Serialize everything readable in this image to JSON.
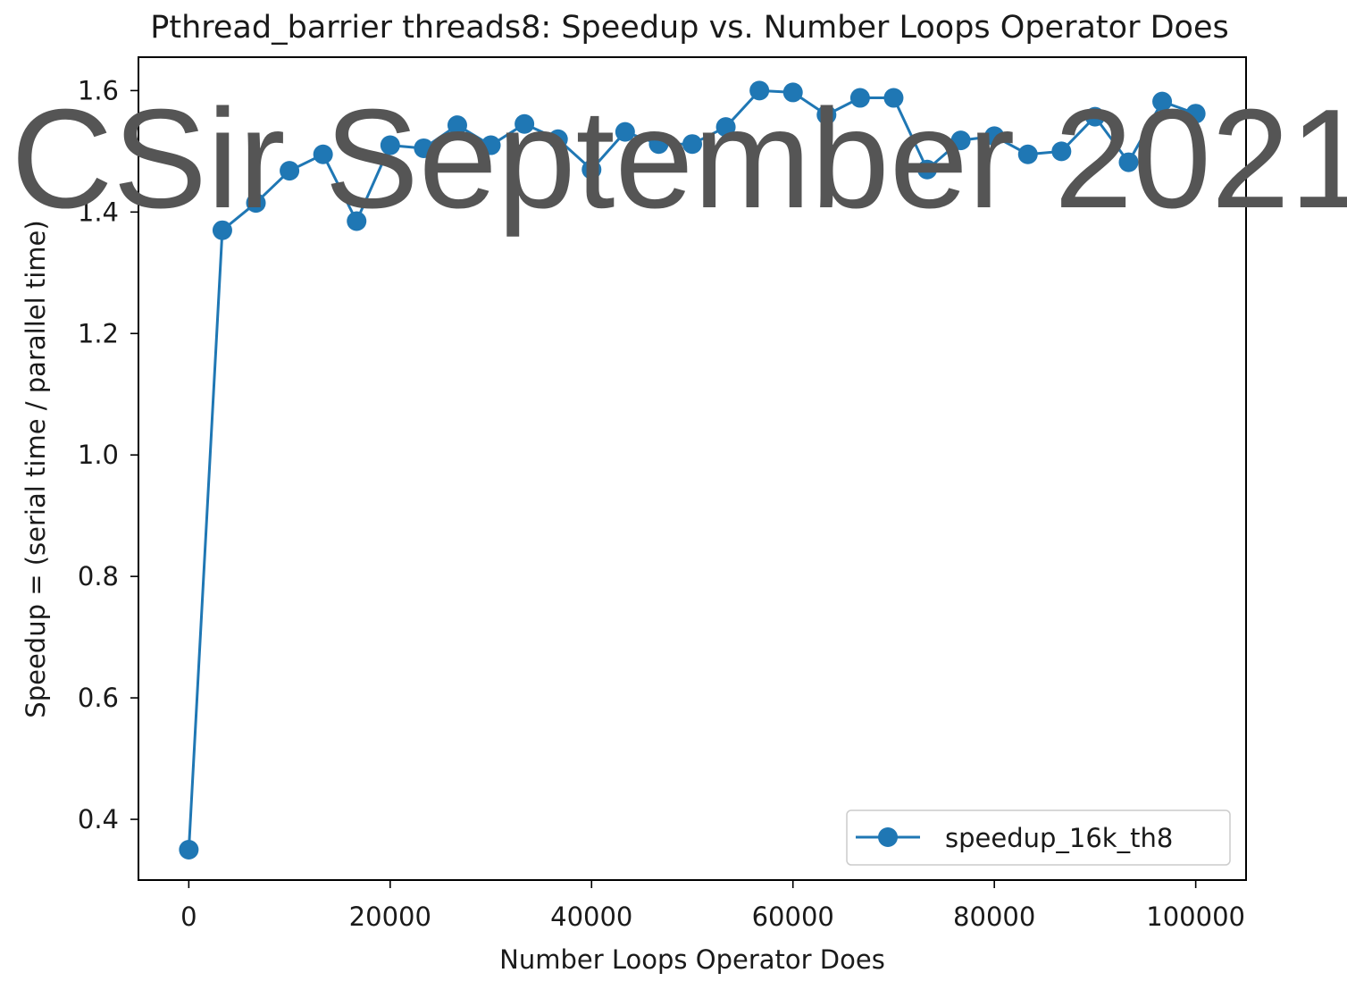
{
  "chart_data": {
    "type": "line",
    "title": "Pthread_barrier threads8: Speedup vs. Number Loops Operator Does",
    "xlabel": "Number Loops Operator Does",
    "ylabel": "Speedup = (serial time / parallel time)",
    "xlim": [
      -5000,
      105000
    ],
    "ylim": [
      0.3,
      1.655
    ],
    "xticks": [
      0,
      20000,
      40000,
      60000,
      80000,
      100000
    ],
    "xtick_labels": [
      "0",
      "20000",
      "40000",
      "60000",
      "80000",
      "100000"
    ],
    "yticks": [
      0.4,
      0.6,
      0.8,
      1.0,
      1.2,
      1.4,
      1.6
    ],
    "ytick_labels": [
      "0.4",
      "0.6",
      "0.8",
      "1.0",
      "1.2",
      "1.4",
      "1.6"
    ],
    "grid": false,
    "legend_position": "lower-right",
    "series": [
      {
        "name": "speedup_16k_th8",
        "color": "#1f77b4",
        "marker": "circle",
        "x": [
          0,
          3333,
          6667,
          10000,
          13333,
          16667,
          20000,
          23333,
          26667,
          30000,
          33333,
          36667,
          40000,
          43333,
          46667,
          50000,
          53333,
          56667,
          60000,
          63333,
          66667,
          70000,
          73333,
          76667,
          80000,
          83333,
          86667,
          90000,
          93333,
          96667,
          100000
        ],
        "y": [
          0.35,
          1.37,
          1.415,
          1.468,
          1.495,
          1.385,
          1.51,
          1.505,
          1.543,
          1.51,
          1.545,
          1.52,
          1.47,
          1.532,
          1.512,
          1.512,
          1.54,
          1.6,
          1.597,
          1.56,
          1.588,
          1.588,
          1.47,
          1.518,
          1.525,
          1.495,
          1.5,
          1.557,
          1.482,
          1.582,
          1.562
        ]
      }
    ]
  },
  "watermark": {
    "text": "CSir September 2021",
    "color": "#555555"
  }
}
